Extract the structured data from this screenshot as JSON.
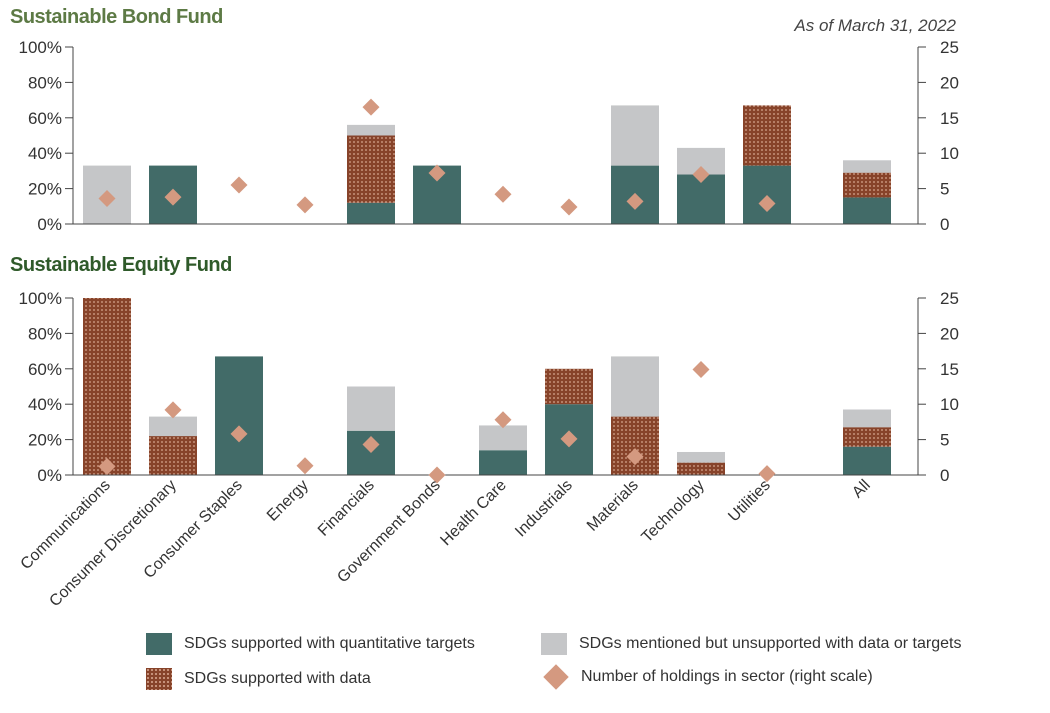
{
  "date_label": "As of March 31, 2022",
  "legend": {
    "quantitative": "SDGs supported with quantitative targets",
    "data": "SDGs supported with data",
    "mentioned": "SDGs mentioned but unsupported with data or targets",
    "holdings": "Number of holdings in sector (right scale)"
  },
  "colors": {
    "quantitative": "#426b68",
    "data": "#87432a",
    "mentioned": "#c5c6c8",
    "holdings": "#d49980"
  },
  "chart_data": [
    {
      "type": "bar",
      "stacked": true,
      "title": "Sustainable Bond Fund",
      "categories": [
        "Communications",
        "Consumer Discretionary",
        "Consumer Staples",
        "Energy",
        "Financials",
        "Government Bonds",
        "Health Care",
        "Industrials",
        "Materials",
        "Technology",
        "Utilities",
        "All"
      ],
      "series": [
        {
          "name": "SDGs supported with quantitative targets",
          "values": [
            0,
            33,
            0,
            0,
            12,
            33,
            0,
            0,
            33,
            28,
            33,
            15
          ]
        },
        {
          "name": "SDGs supported with data",
          "values": [
            0,
            0,
            0,
            0,
            38,
            0,
            0,
            0,
            0,
            0,
            34,
            14
          ]
        },
        {
          "name": "SDGs mentioned but unsupported with data or targets",
          "values": [
            33,
            0,
            0,
            0,
            6,
            0,
            0,
            0,
            34,
            15,
            0,
            7
          ]
        },
        {
          "name": "Number of holdings in sector (right scale)",
          "axis": "right",
          "values": [
            3.6,
            3.8,
            5.5,
            2.7,
            16.5,
            7.2,
            4.2,
            2.4,
            3.2,
            7,
            2.9,
            null
          ]
        }
      ],
      "y_ticks": [
        "0%",
        "20%",
        "40%",
        "60%",
        "80%",
        "100%"
      ],
      "y2_ticks": [
        "0",
        "5",
        "10",
        "15",
        "20",
        "25"
      ],
      "ylim": [
        0,
        100
      ],
      "y2lim": [
        0,
        25
      ]
    },
    {
      "type": "bar",
      "stacked": true,
      "title": "Sustainable Equity Fund",
      "categories": [
        "Communications",
        "Consumer Discretionary",
        "Consumer Staples",
        "Energy",
        "Financials",
        "Government Bonds",
        "Health Care",
        "Industrials",
        "Materials",
        "Technology",
        "Utilities",
        "All"
      ],
      "series": [
        {
          "name": "SDGs supported with quantitative targets",
          "values": [
            0,
            0,
            67,
            0,
            25,
            0,
            14,
            40,
            0,
            0,
            0,
            16
          ]
        },
        {
          "name": "SDGs supported with data",
          "values": [
            100,
            22,
            0,
            0,
            0,
            0,
            0,
            20,
            33,
            7,
            0,
            11
          ]
        },
        {
          "name": "SDGs mentioned but unsupported with data or targets",
          "values": [
            0,
            11,
            0,
            0,
            25,
            0,
            14,
            0,
            34,
            6,
            0,
            10
          ]
        },
        {
          "name": "Number of holdings in sector (right scale)",
          "axis": "right",
          "values": [
            1.2,
            9.2,
            5.8,
            1.3,
            4.3,
            0,
            7.8,
            5.1,
            2.6,
            14.9,
            0.2,
            null
          ]
        }
      ],
      "y_ticks": [
        "0%",
        "20%",
        "40%",
        "60%",
        "80%",
        "100%"
      ],
      "y2_ticks": [
        "0",
        "5",
        "10",
        "15",
        "20",
        "25"
      ],
      "ylim": [
        0,
        100
      ],
      "y2lim": [
        0,
        25
      ]
    }
  ]
}
